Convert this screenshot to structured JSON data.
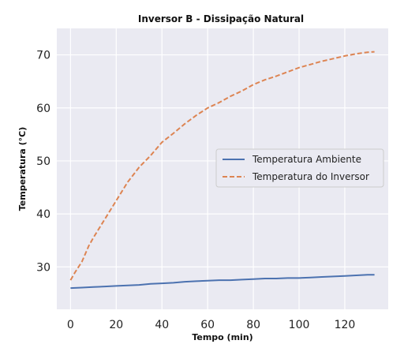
{
  "chart_data": {
    "type": "line",
    "title": "Inversor B - Dissipação Natural",
    "xlabel": "Tempo (min)",
    "ylabel": "Temperatura (°C)",
    "xlim": [
      -6,
      139
    ],
    "ylim": [
      22,
      75
    ],
    "xticks": [
      0,
      20,
      40,
      60,
      80,
      100,
      120
    ],
    "yticks": [
      30,
      40,
      50,
      60,
      70
    ],
    "grid": true,
    "legend_position": "center-right",
    "series": [
      {
        "name": "Temperatura Ambiente",
        "color": "#4c72b0",
        "style": "solid",
        "x": [
          0,
          5,
          10,
          15,
          20,
          25,
          30,
          35,
          40,
          45,
          50,
          55,
          60,
          65,
          70,
          75,
          80,
          85,
          90,
          95,
          100,
          105,
          110,
          115,
          120,
          125,
          130,
          133
        ],
        "y": [
          26.0,
          26.1,
          26.2,
          26.3,
          26.4,
          26.5,
          26.6,
          26.8,
          26.9,
          27.0,
          27.2,
          27.3,
          27.4,
          27.5,
          27.5,
          27.6,
          27.7,
          27.8,
          27.8,
          27.9,
          27.9,
          28.0,
          28.1,
          28.2,
          28.3,
          28.4,
          28.5,
          28.5
        ]
      },
      {
        "name": "Temperatura do Inversor",
        "color": "#dd8452",
        "style": "dashed",
        "x": [
          0,
          2,
          5,
          8,
          10,
          15,
          20,
          25,
          30,
          35,
          40,
          45,
          50,
          55,
          60,
          65,
          70,
          75,
          80,
          85,
          90,
          95,
          100,
          105,
          110,
          115,
          120,
          125,
          130,
          133
        ],
        "y": [
          27.5,
          29.0,
          31.0,
          34.0,
          35.5,
          39.0,
          42.5,
          46.0,
          48.8,
          51.0,
          53.5,
          55.2,
          57.0,
          58.6,
          60.0,
          61.0,
          62.2,
          63.2,
          64.4,
          65.3,
          66.0,
          66.8,
          67.6,
          68.2,
          68.8,
          69.3,
          69.8,
          70.2,
          70.5,
          70.6
        ]
      }
    ]
  }
}
